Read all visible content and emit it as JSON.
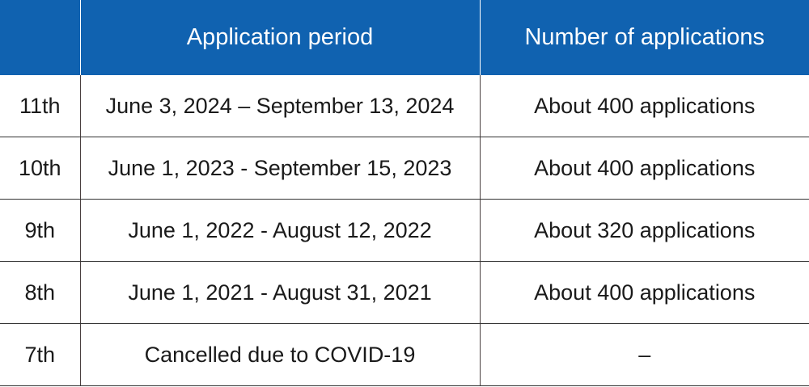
{
  "table": {
    "headers": [
      "",
      "Application period",
      "Number of applications"
    ],
    "rows": [
      [
        "11th",
        "June 3, 2024 – September 13, 2024",
        "About 400 applications"
      ],
      [
        "10th",
        "June 1, 2023 - September 15, 2023",
        "About 400 applications"
      ],
      [
        "9th",
        "June 1, 2022 - August 12, 2022",
        "About 320 applications"
      ],
      [
        "8th",
        "June 1, 2021 - August 31, 2021",
        "About 400 applications"
      ],
      [
        "7th",
        "Cancelled due to COVID-19",
        "–"
      ]
    ]
  },
  "colors": {
    "header_bg": "#1062b0",
    "header_text": "#ffffff",
    "border": "#333333"
  }
}
